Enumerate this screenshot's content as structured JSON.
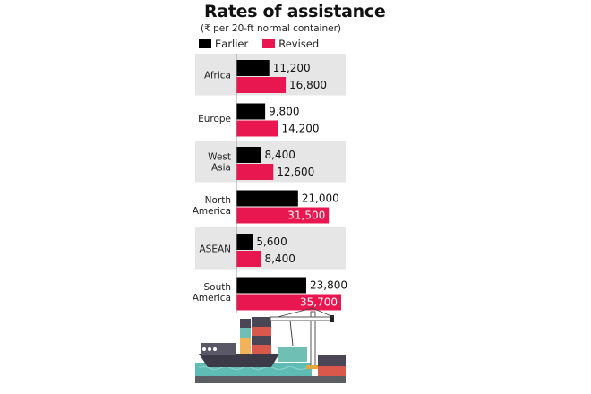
{
  "chart_data": {
    "type": "bar",
    "orientation": "horizontal",
    "title": "Rates of assistance",
    "subtitle": "(₹ per 20-ft normal container)",
    "categories": [
      "Africa",
      "Europe",
      "West Asia",
      "North America",
      "ASEAN",
      "South America"
    ],
    "category_lines": [
      [
        "Africa"
      ],
      [
        "Europe"
      ],
      [
        "West",
        "Asia"
      ],
      [
        "North",
        "America"
      ],
      [
        "ASEAN"
      ],
      [
        "South",
        "America"
      ]
    ],
    "series": [
      {
        "name": "Earlier",
        "color": "#000000",
        "values": [
          11200,
          9800,
          8400,
          21000,
          5600,
          23800
        ]
      },
      {
        "name": "Revised",
        "color": "#E8174F",
        "values": [
          16800,
          14200,
          12600,
          31500,
          8400,
          35700
        ]
      }
    ],
    "value_labels": {
      "Earlier": [
        "11,200",
        "9,800",
        "8,400",
        "21,000",
        "5,600",
        "23,800"
      ],
      "Revised": [
        "16,800",
        "14,200",
        "12,600",
        "31,500",
        "8,400",
        "35,700"
      ]
    },
    "xlim": [
      0,
      36000
    ],
    "legend": "top-left",
    "grid": false,
    "band_color": "#E6E6E6"
  },
  "illustration": "cargo-ship-and-port-crane"
}
